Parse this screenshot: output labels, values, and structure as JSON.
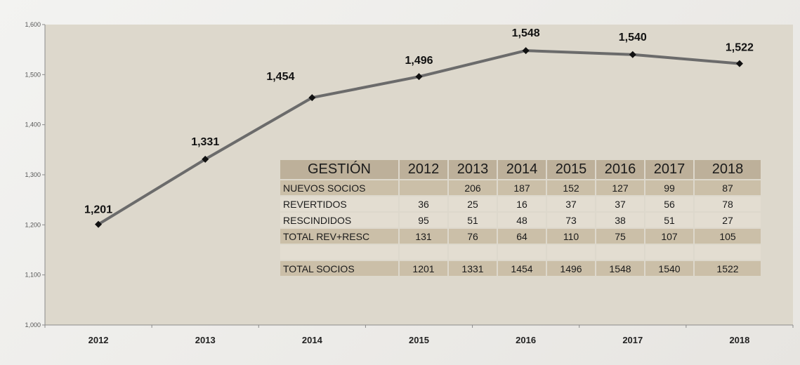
{
  "chart_data": {
    "type": "line",
    "categories": [
      "2012",
      "2013",
      "2014",
      "2015",
      "2016",
      "2017",
      "2018"
    ],
    "series": [
      {
        "values": [
          1201,
          1331,
          1454,
          1496,
          1548,
          1540,
          1522
        ]
      }
    ],
    "data_labels": [
      "1,201",
      "1,331",
      "1,454",
      "1,496",
      "1,548",
      "1,540",
      "1,522"
    ],
    "y_ticks": [
      1000,
      1100,
      1200,
      1300,
      1400,
      1500,
      1600
    ],
    "y_tick_labels": [
      "1,000",
      "1,100",
      "1,200",
      "1,300",
      "1,400",
      "1,500",
      "1,600"
    ],
    "ylim": [
      1000,
      1600
    ],
    "title": "",
    "xlabel": "",
    "ylabel": "",
    "grid": false,
    "legend": "none",
    "colors": {
      "line": "#6b6b6b",
      "marker": "#111111",
      "plot_background": "#ddd8cc",
      "axis": "#8a8a8a"
    }
  },
  "table": {
    "header": [
      "GESTIÓN",
      "2012",
      "2013",
      "2014",
      "2015",
      "2016",
      "2017",
      "2018"
    ],
    "rows": [
      {
        "label": "NUEVOS SOCIOS",
        "values": [
          "",
          "206",
          "187",
          "152",
          "127",
          "99",
          "87"
        ],
        "style": "dark"
      },
      {
        "label": "REVERTIDOS",
        "values": [
          "36",
          "25",
          "16",
          "37",
          "37",
          "56",
          "78"
        ],
        "style": "light"
      },
      {
        "label": "RESCINDIDOS",
        "values": [
          "95",
          "51",
          "48",
          "73",
          "38",
          "51",
          "27"
        ],
        "style": "light"
      },
      {
        "label": "TOTAL REV+RESC",
        "values": [
          "131",
          "76",
          "64",
          "110",
          "75",
          "107",
          "105"
        ],
        "style": "dark"
      },
      {
        "label": "",
        "values": [
          "",
          "",
          "",
          "",
          "",
          "",
          ""
        ],
        "style": "empty"
      },
      {
        "label": "TOTAL SOCIOS",
        "values": [
          "1201",
          "1331",
          "1454",
          "1496",
          "1548",
          "1540",
          "1522"
        ],
        "style": "dark"
      }
    ],
    "colors": {
      "header": "#bdb09a",
      "dark_row": "#cbbfa8",
      "light_row": "#e3ddd1"
    }
  }
}
